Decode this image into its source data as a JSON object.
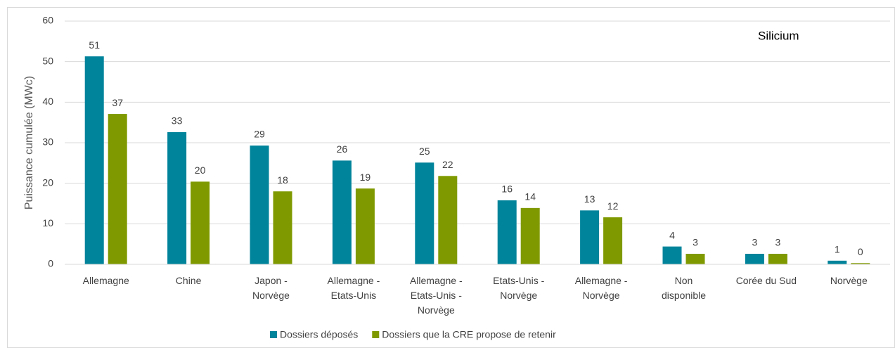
{
  "chart_data": {
    "type": "bar",
    "annotation": "Silicium",
    "y_label": "Puissance cumulée (MWc)",
    "categories": [
      "Allemagne",
      "Chine",
      "Japon - Norvège",
      "Allemagne - Etats-Unis",
      "Allemagne - Etats-Unis - Norvège",
      "Etats-Unis - Norvège",
      "Allemagne - Norvège",
      "Non disponible",
      "Corée du Sud",
      "Norvège"
    ],
    "series": [
      {
        "name": "Dossiers déposés",
        "color": "#00849b",
        "values": [
          51.3,
          32.6,
          29.3,
          25.6,
          25.1,
          15.8,
          13.3,
          4.4,
          2.6,
          0.9
        ],
        "value_labels": [
          "51",
          "33",
          "29",
          "26",
          "25",
          "16",
          "13",
          "4",
          "3",
          "1"
        ]
      },
      {
        "name": "Dossiers que la CRE propose de retenir",
        "color": "#7f9a00",
        "values": [
          37.1,
          20.4,
          18.0,
          18.7,
          21.8,
          13.9,
          11.6,
          2.6,
          2.6,
          0.3
        ],
        "value_labels": [
          "37",
          "20",
          "18",
          "19",
          "22",
          "14",
          "12",
          "3",
          "3",
          "0"
        ]
      }
    ],
    "ylim": [
      0,
      60
    ],
    "yticks": [
      0,
      10,
      20,
      30,
      40,
      50,
      60
    ],
    "grid": true,
    "legend": "bottom"
  }
}
